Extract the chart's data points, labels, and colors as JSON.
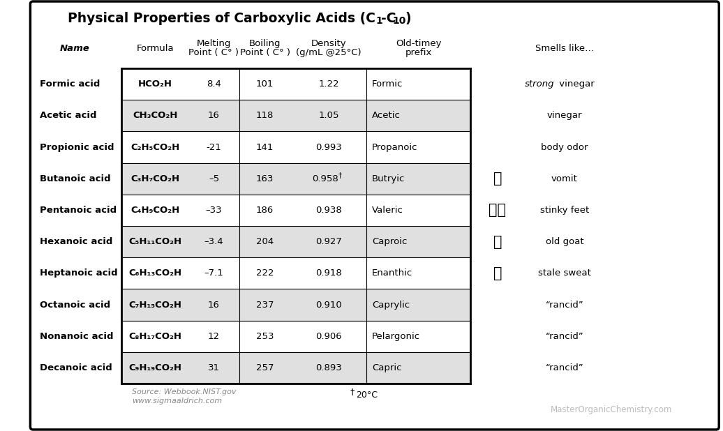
{
  "title_main": "Physical Properties of Carboxylic Acids (C",
  "title_sub1": "1",
  "title_mid": "-C",
  "title_sub2": "10",
  "title_end": ")",
  "col_headers": {
    "name": "Name",
    "formula": "Formula",
    "mp_line1": "Melting",
    "mp_line2": "Point ( C° )",
    "bp_line1": "Boiling",
    "bp_line2": "Point ( C° )",
    "density_line1": "Density",
    "density_line2": "(g/mL @25°C)",
    "prefix_line1": "Old-timey",
    "prefix_line2": "prefix",
    "smells": "Smells like…"
  },
  "rows": [
    {
      "name": "Formic acid",
      "formula": "HCO₂H",
      "mp": "8.4",
      "bp": "101",
      "density": "1.22",
      "density_dagger": false,
      "prefix": "Formic",
      "smell": "strong vinegar",
      "smell_italic": "strong",
      "emoji": ""
    },
    {
      "name": "Acetic acid",
      "formula": "CH₃CO₂H",
      "mp": "16",
      "bp": "118",
      "density": "1.05",
      "density_dagger": false,
      "prefix": "Acetic",
      "smell": "vinegar",
      "smell_italic": "",
      "emoji": ""
    },
    {
      "name": "Propionic acid",
      "formula": "C₂H₅CO₂H",
      "mp": "-21",
      "bp": "141",
      "density": "0.993",
      "density_dagger": false,
      "prefix": "Propanoic",
      "smell": "body odor",
      "smell_italic": "",
      "emoji": ""
    },
    {
      "name": "Butanoic acid",
      "formula": "C₃H₇CO₂H",
      "mp": "–5",
      "bp": "163",
      "density": "0.958",
      "density_dagger": true,
      "prefix": "Butryic",
      "smell": "vomit",
      "smell_italic": "",
      "emoji": "🤢"
    },
    {
      "name": "Pentanoic acid",
      "formula": "C₄H₉CO₂H",
      "mp": "–33",
      "bp": "186",
      "density": "0.938",
      "density_dagger": false,
      "prefix": "Valeric",
      "smell": "stinky feet",
      "smell_italic": "",
      "emoji": "🦗🦗"
    },
    {
      "name": "Hexanoic acid",
      "formula": "C₅H₁₁CO₂H",
      "mp": "–3.4",
      "bp": "204",
      "density": "0.927",
      "density_dagger": false,
      "prefix": "Caproic",
      "smell": "old goat",
      "smell_italic": "",
      "emoji": "🐐"
    },
    {
      "name": "Heptanoic acid",
      "formula": "C₆H₁₃CO₂H",
      "mp": "–7.1",
      "bp": "222",
      "density": "0.918",
      "density_dagger": false,
      "prefix": "Enanthic",
      "smell": "stale sweat",
      "smell_italic": "",
      "emoji": "🥵"
    },
    {
      "name": "Octanoic acid",
      "formula": "C₇H₁₅CO₂H",
      "mp": "16",
      "bp": "237",
      "density": "0.910",
      "density_dagger": false,
      "prefix": "Caprylic",
      "smell": "“rancid”",
      "smell_italic": "",
      "emoji": ""
    },
    {
      "name": "Nonanoic acid",
      "formula": "C₈H₁₇CO₂H",
      "mp": "12",
      "bp": "253",
      "density": "0.906",
      "density_dagger": false,
      "prefix": "Pelargonic",
      "smell": "“rancid”",
      "smell_italic": "",
      "emoji": ""
    },
    {
      "name": "Decanoic acid",
      "formula": "C₉H₁₉CO₂H",
      "mp": "31",
      "bp": "257",
      "density": "0.893",
      "density_dagger": false,
      "prefix": "Capric",
      "smell": "“rancid”",
      "smell_italic": "",
      "emoji": ""
    }
  ],
  "row_shading": [
    "#ffffff",
    "#e0e0e0",
    "#ffffff",
    "#e0e0e0",
    "#ffffff",
    "#e0e0e0",
    "#ffffff",
    "#e0e0e0",
    "#ffffff",
    "#e0e0e0"
  ],
  "source_line1": "Source: Webbook.NIST.gov",
  "source_line2": "www.sigmaaldrich.com",
  "footnote_dagger": "†",
  "footnote_text": "20°C",
  "watermark": "MasterOrganicChemistry.com",
  "bg_color": "#ffffff",
  "outer_border_color": "#000000",
  "table_border_color": "#000000"
}
